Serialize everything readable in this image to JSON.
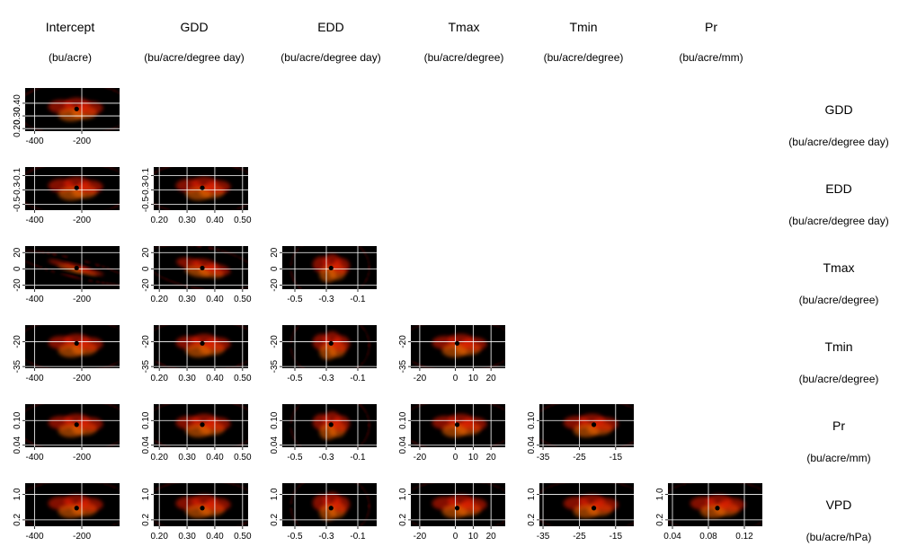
{
  "chart_data": {
    "type": "heatmap",
    "description_of_layout": "",
    "columns": [
      {
        "name": "Intercept",
        "unit": "(bu/acre)"
      },
      {
        "name": "GDD",
        "unit": "(bu/acre/degree day)"
      },
      {
        "name": "EDD",
        "unit": "(bu/acre/degree day)"
      },
      {
        "name": "Tmax",
        "unit": "(bu/acre/degree)"
      },
      {
        "name": "Tmin",
        "unit": "(bu/acre/degree)"
      },
      {
        "name": "Pr",
        "unit": "(bu/acre/mm)"
      }
    ],
    "rows": [
      {
        "name": "GDD",
        "unit": "(bu/acre/degree day)"
      },
      {
        "name": "EDD",
        "unit": "(bu/acre/degree day)"
      },
      {
        "name": "Tmax",
        "unit": "(bu/acre/degree)"
      },
      {
        "name": "Tmin",
        "unit": "(bu/acre/degree)"
      },
      {
        "name": "Pr",
        "unit": "(bu/acre/mm)"
      },
      {
        "name": "VPD",
        "unit": "(bu/acre/hPa)"
      }
    ],
    "x_axes": [
      {
        "ticks": [
          "-400",
          "-200"
        ],
        "range": [
          -440,
          -40
        ]
      },
      {
        "ticks": [
          "0.20",
          "0.30",
          "0.40",
          "0.50"
        ],
        "range": [
          0.18,
          0.52
        ]
      },
      {
        "ticks": [
          "-0.5",
          "-0.3",
          "-0.1"
        ],
        "range": [
          -0.58,
          0.02
        ]
      },
      {
        "ticks": [
          "-20",
          "0",
          "10",
          "20"
        ],
        "range": [
          -25,
          28
        ]
      },
      {
        "ticks": [
          "-35",
          "-25",
          "-15"
        ],
        "range": [
          -36,
          -10
        ]
      },
      {
        "ticks": [
          "0.04",
          "0.08",
          "0.12"
        ],
        "range": [
          0.035,
          0.14
        ]
      }
    ],
    "y_axes": [
      {
        "ticks": [
          "0.20",
          "0.30",
          "0.40"
        ],
        "tick_values": [
          0.2,
          0.3,
          0.4
        ],
        "range": [
          0.18,
          0.52
        ]
      },
      {
        "ticks": [
          "-0.5",
          "-0.3",
          "-0.1"
        ],
        "tick_values": [
          -0.5,
          -0.3,
          -0.1
        ],
        "range": [
          -0.58,
          0.02
        ]
      },
      {
        "ticks": [
          "-20",
          "0",
          "20"
        ],
        "tick_values": [
          -20,
          0,
          20
        ],
        "range": [
          -25,
          28
        ]
      },
      {
        "ticks": [
          "-35",
          "-20"
        ],
        "tick_values": [
          -35,
          -20
        ],
        "range": [
          -36,
          -10
        ]
      },
      {
        "ticks": [
          "0.04",
          "0.10"
        ],
        "tick_values": [
          0.04,
          0.1
        ],
        "range": [
          0.035,
          0.14
        ]
      },
      {
        "ticks": [
          "0.2",
          "1.0"
        ],
        "tick_values": [
          0.2,
          1.0
        ],
        "range": [
          0.0,
          1.35
        ]
      }
    ],
    "point_estimates": {
      "Intercept": -222,
      "GDD": 0.355,
      "EDD": -0.27,
      "Tmax": 1,
      "Tmin": -21,
      "Pr": 0.09,
      "VPD": 0.57
    },
    "color_scale": [
      "#000000",
      "#0000ff",
      "#00ff00",
      "#ffff00",
      "#ff0000"
    ],
    "grid": true
  }
}
